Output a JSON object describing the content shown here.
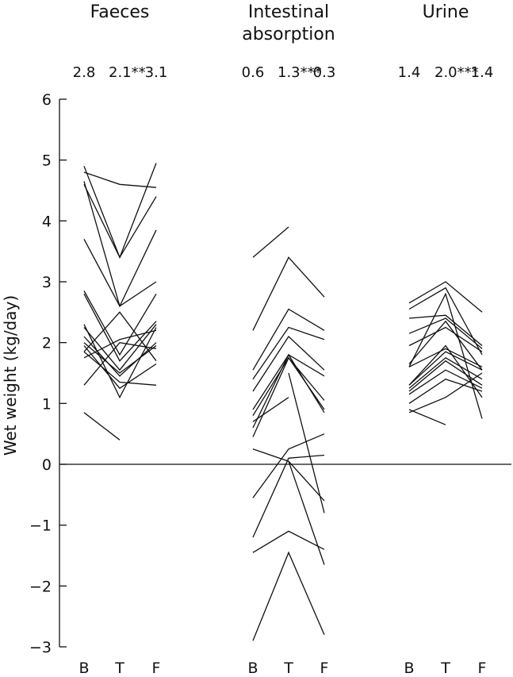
{
  "chart_data": {
    "type": "line",
    "ylabel": "Wet weight (kg/day)",
    "ylim": [
      -3,
      6
    ],
    "yticks": [
      -3,
      -2,
      -1,
      0,
      1,
      2,
      3,
      4,
      5,
      6
    ],
    "conditions": [
      "B",
      "T",
      "F"
    ],
    "panels": [
      {
        "title_lines": [
          "Faeces"
        ],
        "means": [
          "2.8",
          "2.1**",
          "3.1"
        ],
        "series": [
          {
            "values": [
              4.9,
              3.4,
              4.95
            ]
          },
          {
            "values": [
              4.8,
              4.6,
              4.55
            ]
          },
          {
            "values": [
              4.6,
              3.4,
              4.4
            ]
          },
          {
            "values": [
              4.65,
              2.6,
              3.85
            ]
          },
          {
            "values": [
              3.7,
              2.6,
              3.0
            ]
          },
          {
            "values": [
              2.85,
              1.8,
              2.8
            ]
          },
          {
            "values": [
              2.8,
              1.7,
              2.35
            ]
          },
          {
            "values": [
              2.25,
              1.55,
              2.3
            ]
          },
          {
            "values": [
              2.1,
              1.45,
              2.0
            ]
          },
          {
            "values": [
              1.95,
              1.25,
              1.65
            ]
          },
          {
            "values": [
              1.85,
              2.5,
              1.7
            ]
          },
          {
            "values": [
              1.75,
              2.05,
              2.2
            ]
          },
          {
            "values": [
              1.3,
              2.0,
              1.9
            ]
          },
          {
            "values": [
              1.85,
              1.35,
              1.3
            ]
          },
          {
            "values": [
              2.3,
              1.1,
              2.25
            ]
          },
          {
            "values": [
              2.0,
              1.5,
              1.95
            ]
          },
          {
            "values": [
              0.85,
              0.4,
              null
            ]
          }
        ]
      },
      {
        "title_lines": [
          "Intestinal",
          "absorption"
        ],
        "means": [
          "0.6",
          "1.3***",
          "0.3"
        ],
        "series": [
          {
            "values": [
              3.4,
              3.9,
              null
            ]
          },
          {
            "values": [
              2.2,
              3.4,
              2.75
            ]
          },
          {
            "values": [
              1.55,
              2.55,
              2.2
            ]
          },
          {
            "values": [
              1.4,
              2.25,
              2.05
            ]
          },
          {
            "values": [
              1.2,
              2.1,
              1.55
            ]
          },
          {
            "values": [
              0.9,
              1.8,
              1.45
            ]
          },
          {
            "values": [
              0.8,
              1.75,
              1.05
            ]
          },
          {
            "values": [
              0.7,
              1.1,
              null
            ]
          },
          {
            "values": [
              0.6,
              1.8,
              0.85
            ]
          },
          {
            "values": [
              0.45,
              1.75,
              0.9
            ]
          },
          {
            "values": [
              0.25,
              0.05,
              -0.6
            ]
          },
          {
            "values": [
              -0.55,
              0.25,
              0.5
            ]
          },
          {
            "values": [
              -1.2,
              0.1,
              0.15
            ]
          },
          {
            "values": [
              -1.45,
              -1.1,
              -1.4
            ]
          },
          {
            "values": [
              -2.9,
              -1.45,
              -2.8
            ]
          },
          {
            "values": [
              null,
              1.5,
              -0.8
            ]
          },
          {
            "values": [
              null,
              0.05,
              -1.65
            ]
          }
        ]
      },
      {
        "title_lines": [
          "Urine"
        ],
        "means": [
          "1.4",
          "2.0***",
          "1.4"
        ],
        "series": [
          {
            "values": [
              2.65,
              3.0,
              2.5
            ]
          },
          {
            "values": [
              2.55,
              2.9,
              1.8
            ]
          },
          {
            "values": [
              2.4,
              2.45,
              1.95
            ]
          },
          {
            "values": [
              2.15,
              2.4,
              1.9
            ]
          },
          {
            "values": [
              1.95,
              2.25,
              1.85
            ]
          },
          {
            "values": [
              1.65,
              2.35,
              1.55
            ]
          },
          {
            "values": [
              1.6,
              1.9,
              1.6
            ]
          },
          {
            "values": [
              1.3,
              1.85,
              1.55
            ]
          },
          {
            "values": [
              1.25,
              1.75,
              1.4
            ]
          },
          {
            "values": [
              1.2,
              1.7,
              1.3
            ]
          },
          {
            "values": [
              1.15,
              1.55,
              1.25
            ]
          },
          {
            "values": [
              1.0,
              1.4,
              1.2
            ]
          },
          {
            "values": [
              0.85,
              1.1,
              1.5
            ]
          },
          {
            "values": [
              0.9,
              0.65,
              null
            ]
          },
          {
            "values": [
              1.6,
              2.8,
              0.75
            ]
          },
          {
            "values": [
              1.3,
              1.95,
              1.1
            ]
          }
        ]
      }
    ]
  }
}
